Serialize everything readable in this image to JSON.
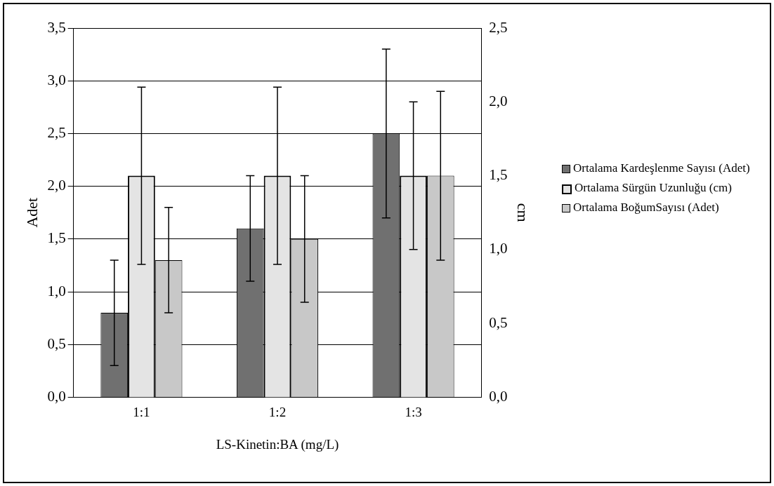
{
  "chart_data": {
    "type": "bar",
    "xlabel": "LS-Kinetin:BA (mg/L)",
    "ylabel": "Adet",
    "y2label": "cm",
    "categories": [
      "1:1",
      "1:2",
      "1:3"
    ],
    "series": [
      {
        "name": "Ortalama Kardeşlenme Sayısı (Adet)",
        "color": "#707070",
        "values": [
          0.8,
          1.6,
          2.5
        ],
        "errors": [
          0.5,
          0.5,
          0.8
        ]
      },
      {
        "name": "Ortalama Sürgün Uzunluğu (cm)",
        "color": "#e4e4e4",
        "values": [
          1.5,
          1.5,
          1.5
        ],
        "errors": [
          0.6,
          0.6,
          0.5
        ],
        "axis": "y2"
      },
      {
        "name": "Ortalama BoğumSayısı (Adet)",
        "color": "#c8c8c8",
        "values": [
          1.3,
          1.5,
          2.1
        ],
        "errors": [
          0.5,
          0.6,
          0.8
        ]
      }
    ],
    "ylim": [
      0,
      3.5
    ],
    "yticks": [
      {
        "value": 0,
        "label": "0,0"
      },
      {
        "value": 0.5,
        "label": "0,5"
      },
      {
        "value": 1,
        "label": "1,0"
      },
      {
        "value": 1.5,
        "label": "1,5"
      },
      {
        "value": 2,
        "label": "2,0"
      },
      {
        "value": 2.5,
        "label": "2,5"
      },
      {
        "value": 3,
        "label": "3,0"
      },
      {
        "value": 3.5,
        "label": "3,5"
      }
    ],
    "y2lim": [
      0,
      2.5
    ],
    "y2ticks": [
      {
        "value": 0,
        "label": "0,0"
      },
      {
        "value": 0.5,
        "label": "0,5"
      },
      {
        "value": 1,
        "label": "1,0"
      },
      {
        "value": 1.5,
        "label": "1,5"
      },
      {
        "value": 2,
        "label": "2,0"
      },
      {
        "value": 2.5,
        "label": "2,5"
      }
    ],
    "grid": "y",
    "legend": "right"
  }
}
